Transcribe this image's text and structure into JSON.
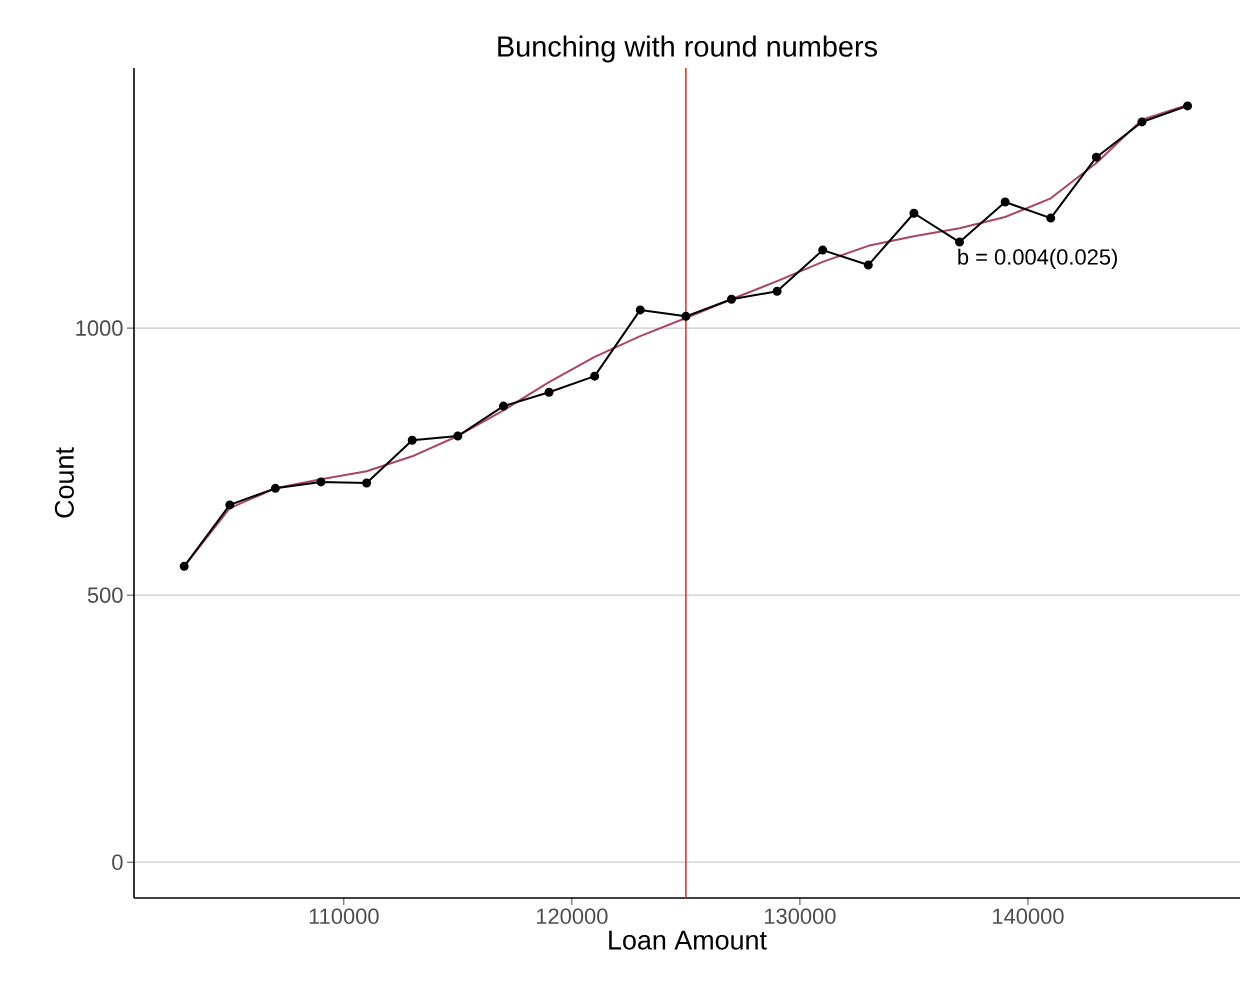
{
  "chart_data": {
    "type": "line",
    "title": "Bunching with round numbers",
    "xlabel": "Loan Amount",
    "ylabel": "Count",
    "x": [
      103000,
      105000,
      107000,
      109000,
      111000,
      113000,
      115000,
      117000,
      119000,
      121000,
      123000,
      125000,
      127000,
      129000,
      131000,
      133000,
      135000,
      137000,
      139000,
      141000,
      143000,
      145000,
      147000
    ],
    "series": [
      {
        "color": "#a8446a",
        "marker": "none",
        "values": [
          554,
          663,
          700,
          717,
          732,
          760,
          798,
          846,
          899,
          946,
          985,
          1019,
          1054,
          1088,
          1124,
          1154,
          1172,
          1187,
          1208,
          1243,
          1309,
          1390,
          1418
        ]
      },
      {
        "color": "#000000",
        "marker": "circle",
        "values": [
          554,
          669,
          700,
          712,
          710,
          790,
          798,
          854,
          880,
          910,
          1034,
          1022,
          1054,
          1069,
          1146,
          1118,
          1215,
          1161,
          1236,
          1206,
          1320,
          1386,
          1416
        ]
      }
    ],
    "xlim": [
      100800,
      149300
    ],
    "ylim": [
      -67,
      1487
    ],
    "xticks": [
      110000,
      120000,
      130000,
      140000
    ],
    "yticks": [
      0,
      500,
      1000
    ],
    "grid": "y",
    "line_style": "solid",
    "ref_lines": [
      {
        "axis": "x",
        "value": 125000,
        "color": "#e8362b"
      }
    ],
    "annotations": [
      "b = 0.004(0.025)"
    ]
  }
}
